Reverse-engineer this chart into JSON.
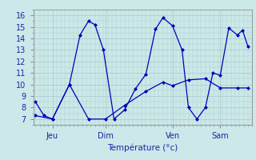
{
  "xlabel": "Température (°c)",
  "background_color": "#cce8e8",
  "grid_color": "#aacece",
  "line_color": "#0000bb",
  "marker_color": "#0000bb",
  "x_tick_labels": [
    "Jeu",
    "Dim",
    "Ven",
    "Sam"
  ],
  "x_tick_positions": [
    0.08,
    0.33,
    0.645,
    0.87
  ],
  "ylim": [
    6.5,
    16.5
  ],
  "yticks": [
    7,
    8,
    9,
    10,
    11,
    12,
    13,
    14,
    15,
    16
  ],
  "series1_x": [
    0,
    0.04,
    0.08,
    0.16,
    0.21,
    0.25,
    0.28,
    0.32,
    0.37,
    0.42,
    0.47,
    0.52,
    0.565,
    0.6,
    0.645,
    0.69,
    0.72,
    0.76,
    0.8,
    0.835,
    0.87,
    0.91,
    0.95,
    0.975,
    1.0
  ],
  "series1_y": [
    8.5,
    7.3,
    7.0,
    10.0,
    14.3,
    15.5,
    15.2,
    13.0,
    7.0,
    7.8,
    9.6,
    10.9,
    14.8,
    15.8,
    15.1,
    13.0,
    8.0,
    7.0,
    8.0,
    11.0,
    10.8,
    14.9,
    14.3,
    14.7,
    13.3
  ],
  "series2_x": [
    0,
    0.08,
    0.16,
    0.25,
    0.33,
    0.42,
    0.52,
    0.6,
    0.645,
    0.72,
    0.8,
    0.87,
    0.95,
    1.0
  ],
  "series2_y": [
    7.3,
    7.0,
    10.0,
    7.0,
    7.0,
    8.2,
    9.4,
    10.2,
    9.9,
    10.4,
    10.5,
    9.7,
    9.7,
    9.7
  ],
  "xlim": [
    -0.01,
    1.02
  ]
}
